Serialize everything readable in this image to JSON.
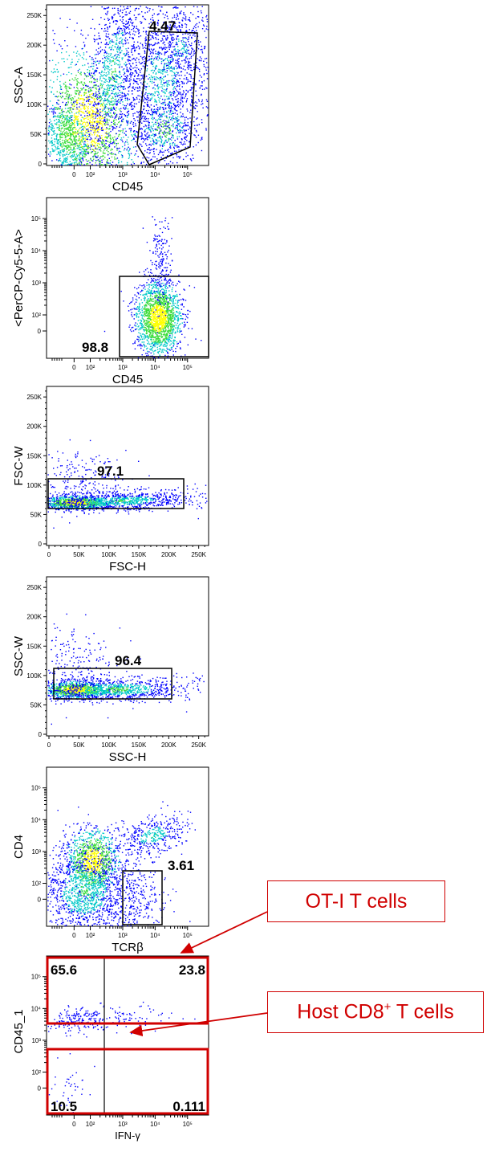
{
  "chart_data": [
    {
      "type": "scatter",
      "xlabel": "CD45",
      "ylabel": "SSC-A",
      "x_scale": "biexponential",
      "y_scale": "linear",
      "xlim": [
        "-10^2",
        "2.5x10^5"
      ],
      "ylim": [
        0,
        262144
      ],
      "x_ticks": [
        "0",
        "10²",
        "10³",
        "10⁴",
        "10⁵"
      ],
      "y_ticks": [
        "0",
        "50K",
        "100K",
        "150K",
        "200K",
        "250K"
      ],
      "gate": {
        "shape": "polygon",
        "value": "4.47"
      },
      "annotations": [
        "4.47"
      ]
    },
    {
      "type": "scatter",
      "xlabel": "CD45",
      "ylabel": "<PerCP-Cy5-5-A>",
      "x_scale": "biexponential",
      "y_scale": "biexponential",
      "x_ticks": [
        "0",
        "10²",
        "10³",
        "10⁴",
        "10⁵"
      ],
      "y_ticks": [
        "0",
        "10²",
        "10³",
        "10⁴",
        "10⁵"
      ],
      "gate": {
        "shape": "rectangle",
        "value": "98.8"
      },
      "annotations": [
        "98.8"
      ]
    },
    {
      "type": "scatter",
      "xlabel": "FSC-H",
      "ylabel": "FSC-W",
      "x_scale": "linear",
      "y_scale": "linear",
      "xlim": [
        0,
        262144
      ],
      "ylim": [
        0,
        262144
      ],
      "x_ticks": [
        "0",
        "50K",
        "100K",
        "150K",
        "200K",
        "250K"
      ],
      "y_ticks": [
        "0",
        "50K",
        "100K",
        "150K",
        "200K",
        "250K"
      ],
      "gate": {
        "shape": "rectangle",
        "value": "97.1"
      },
      "annotations": [
        "97.1"
      ]
    },
    {
      "type": "scatter",
      "xlabel": "SSC-H",
      "ylabel": "SSC-W",
      "x_scale": "linear",
      "y_scale": "linear",
      "xlim": [
        0,
        262144
      ],
      "ylim": [
        0,
        262144
      ],
      "x_ticks": [
        "0",
        "50K",
        "100K",
        "150K",
        "200K",
        "250K"
      ],
      "y_ticks": [
        "0",
        "50K",
        "100K",
        "150K",
        "200K",
        "250K"
      ],
      "gate": {
        "shape": "rectangle",
        "value": "96.4"
      },
      "annotations": [
        "96.4"
      ]
    },
    {
      "type": "scatter",
      "xlabel": "TCRβ",
      "ylabel": "CD4",
      "x_scale": "biexponential",
      "y_scale": "biexponential",
      "x_ticks": [
        "0",
        "10²",
        "10³",
        "10⁴",
        "10⁵"
      ],
      "y_ticks": [
        "0",
        "10²",
        "10³",
        "10⁴",
        "10⁵"
      ],
      "gate": {
        "shape": "rectangle",
        "value": "3.61"
      },
      "annotations": [
        "3.61"
      ]
    },
    {
      "type": "scatter",
      "xlabel": "IFN-γ",
      "ylabel": "CD45_1",
      "x_scale": "biexponential",
      "y_scale": "biexponential",
      "x_ticks": [
        "0",
        "10²",
        "10³",
        "10⁴",
        "10⁵"
      ],
      "y_ticks": [
        "0",
        "10²",
        "10³",
        "10⁴",
        "10⁵"
      ],
      "gate": {
        "shape": "quadrant",
        "values": {
          "upper_left": "65.6",
          "upper_right": "23.8",
          "lower_left": "10.5",
          "lower_right": "0.111"
        }
      },
      "annotations": [
        "65.6",
        "23.8",
        "10.5",
        "0.111"
      ]
    }
  ],
  "callouts": {
    "ot1": "OT-I T cells",
    "host_prefix": "Host CD8",
    "host_sup": "+",
    "host_suffix": " T cells"
  },
  "colors": {
    "callout": "#d00000",
    "axis": "#000000",
    "density_low": "#0000ff",
    "density_mid": "#00c8c8",
    "density_mid2": "#3cdc3c",
    "density_high": "#ffff00",
    "density_peak": "#ff0000"
  }
}
